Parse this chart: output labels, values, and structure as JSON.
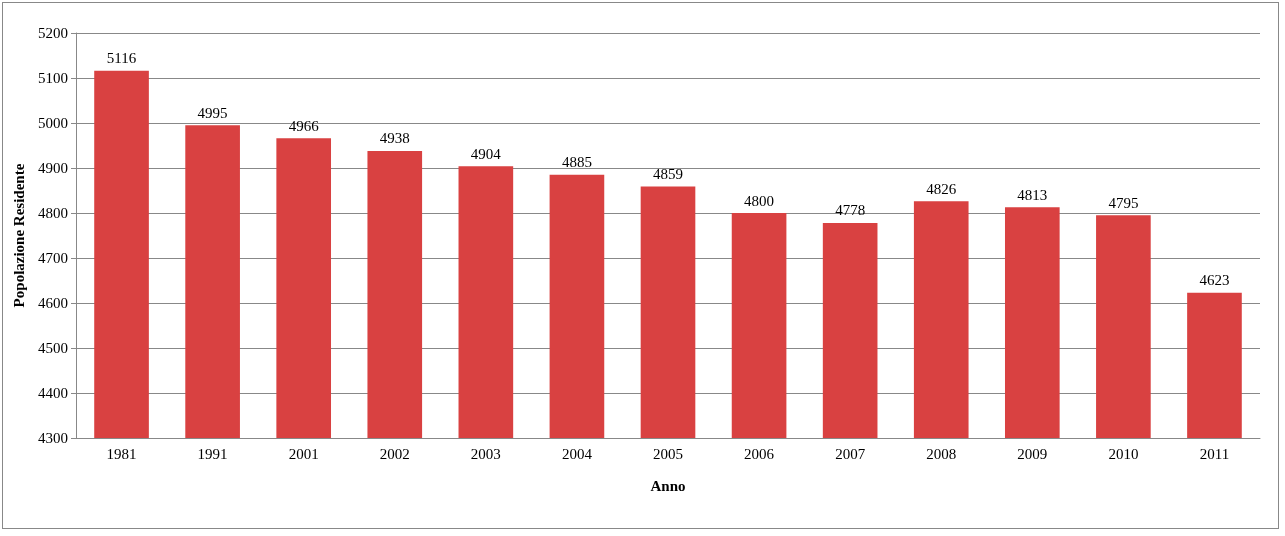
{
  "chart_data": {
    "type": "bar",
    "xlabel": "Anno",
    "ylabel": "Popolazione Residente",
    "categories": [
      "1981",
      "1991",
      "2001",
      "2002",
      "2003",
      "2004",
      "2005",
      "2006",
      "2007",
      "2008",
      "2009",
      "2010",
      "2011"
    ],
    "values": [
      5116,
      4995,
      4966,
      4938,
      4904,
      4885,
      4859,
      4800,
      4778,
      4826,
      4813,
      4795,
      4623
    ],
    "color": "#d94141",
    "ylim": [
      4300,
      5200
    ],
    "yticks": [
      4300,
      4400,
      4500,
      4600,
      4700,
      4800,
      4900,
      5000,
      5100,
      5200
    ],
    "grid": "y",
    "data_labels": true
  }
}
